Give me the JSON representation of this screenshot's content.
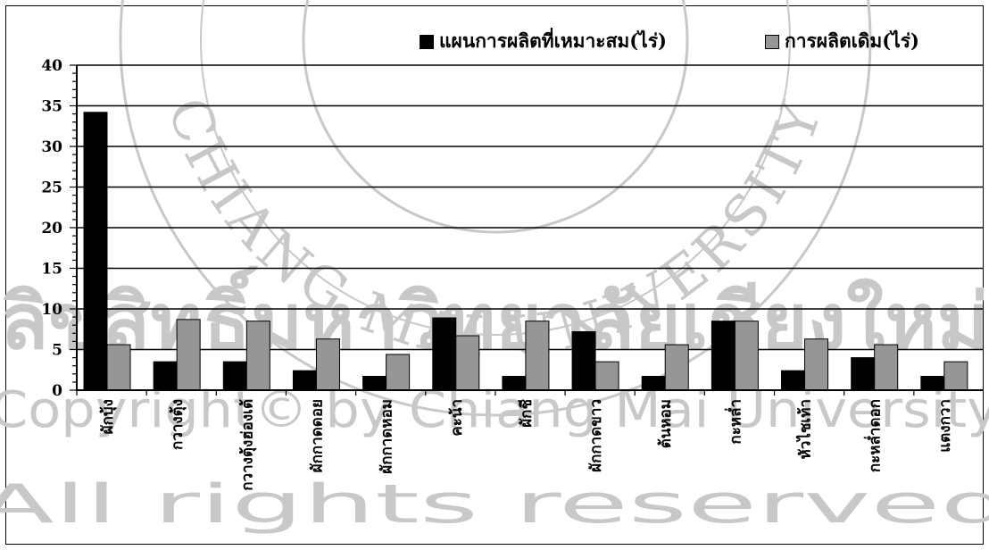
{
  "watermark": {
    "seal_text": "CHIANG MAI UNIVERSITY",
    "line1": "ลิขสิทธิ์มหาวิทยาลัยเชียงใหม่",
    "line2": "Copyright© by Chiang Mai University",
    "line3": "All rights reserved"
  },
  "colors": {
    "optimal": "#000000",
    "current": "#969696",
    "grid": "#000000",
    "watermark": "#c8c8c8"
  },
  "chart_data": {
    "type": "bar",
    "title": "",
    "xlabel": "",
    "ylabel": "",
    "ylim": [
      0,
      40
    ],
    "yticks": [
      0,
      5,
      10,
      15,
      20,
      25,
      30,
      35,
      40
    ],
    "grid": true,
    "legend_position": "top-right",
    "categories": [
      "ผักบุ้ง",
      "กวางตุ้ง",
      "กวางตุ้งฮ่องเต้",
      "ผักกาดดอย",
      "ผักกาดหอม",
      "คะน้า",
      "ผักชี",
      "ผักกาดขาว",
      "ต้นหอม",
      "กะหล่ำ",
      "หัวไชเท้า",
      "กะหล่ำดอก",
      "แตงกวา"
    ],
    "series": [
      {
        "name": "แผนการผลิตที่เหมาะสม(ไร่)",
        "color": "#000000",
        "values": [
          34.2,
          3.5,
          3.5,
          2.4,
          1.7,
          8.9,
          1.7,
          7.2,
          1.7,
          8.5,
          2.4,
          4.0,
          1.7
        ]
      },
      {
        "name": "การผลิตเดิม(ไร่)",
        "color": "#969696",
        "values": [
          5.6,
          8.7,
          8.5,
          6.3,
          4.4,
          6.7,
          8.5,
          3.5,
          5.6,
          8.5,
          6.3,
          5.6,
          3.5
        ]
      }
    ]
  }
}
